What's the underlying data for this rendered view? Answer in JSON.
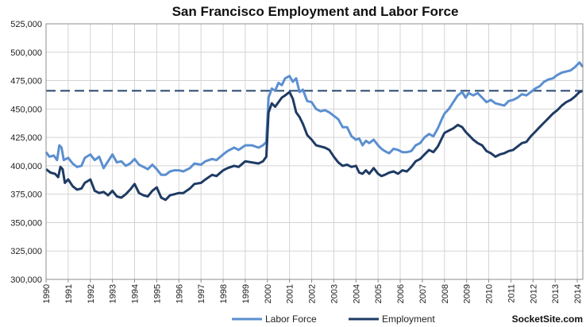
{
  "chart_data": {
    "type": "line",
    "title": "San Francisco Employment and Labor Force",
    "xlabel": "",
    "ylabel": "",
    "xlim": [
      1990,
      2014.25
    ],
    "ylim": [
      300000,
      525000
    ],
    "yticks": [
      300000,
      325000,
      350000,
      375000,
      400000,
      425000,
      450000,
      475000,
      500000,
      525000
    ],
    "ytick_labels": [
      "300,000",
      "325,000",
      "350,000",
      "375,000",
      "400,000",
      "425,000",
      "450,000",
      "475,000",
      "500,000",
      "525,000"
    ],
    "xticks": [
      1990,
      1991,
      1992,
      1993,
      1994,
      1995,
      1996,
      1997,
      1998,
      1999,
      2000,
      2001,
      2002,
      2003,
      2004,
      2005,
      2006,
      2007,
      2008,
      2009,
      2010,
      2011,
      2012,
      2013,
      2014
    ],
    "xtick_labels": [
      "1990",
      "1991",
      "1992",
      "1993",
      "1994",
      "1995",
      "1996",
      "1997",
      "1998",
      "1999",
      "2000",
      "2001",
      "2002",
      "2003",
      "2004",
      "2005",
      "2006",
      "2007",
      "2008",
      "2009",
      "2010",
      "2011",
      "2012",
      "2013",
      "2014"
    ],
    "grid": {
      "horizontal": true,
      "vertical": true
    },
    "legend": "bottom",
    "reference_line": {
      "y": 466000,
      "style": "dashed",
      "color": "#24466f"
    },
    "series": [
      {
        "name": "Labor Force",
        "color": "#5b8fd0",
        "points": [
          [
            1990.0,
            412000
          ],
          [
            1990.15,
            408000
          ],
          [
            1990.35,
            409000
          ],
          [
            1990.5,
            405000
          ],
          [
            1990.6,
            418000
          ],
          [
            1990.7,
            416000
          ],
          [
            1990.8,
            405000
          ],
          [
            1991.0,
            407000
          ],
          [
            1991.2,
            402000
          ],
          [
            1991.4,
            399000
          ],
          [
            1991.6,
            400000
          ],
          [
            1991.75,
            407000
          ],
          [
            1992.0,
            410000
          ],
          [
            1992.2,
            405000
          ],
          [
            1992.4,
            408000
          ],
          [
            1992.6,
            398000
          ],
          [
            1992.8,
            404000
          ],
          [
            1993.0,
            410000
          ],
          [
            1993.2,
            403000
          ],
          [
            1993.4,
            404000
          ],
          [
            1993.6,
            400000
          ],
          [
            1993.8,
            402000
          ],
          [
            1994.0,
            406000
          ],
          [
            1994.2,
            401000
          ],
          [
            1994.4,
            399000
          ],
          [
            1994.6,
            397000
          ],
          [
            1994.8,
            401000
          ],
          [
            1995.0,
            397000
          ],
          [
            1995.2,
            392000
          ],
          [
            1995.4,
            392000
          ],
          [
            1995.6,
            395000
          ],
          [
            1995.8,
            396000
          ],
          [
            1996.0,
            396000
          ],
          [
            1996.2,
            395000
          ],
          [
            1996.5,
            398000
          ],
          [
            1996.7,
            402000
          ],
          [
            1997.0,
            401000
          ],
          [
            1997.2,
            404000
          ],
          [
            1997.5,
            406000
          ],
          [
            1997.7,
            405000
          ],
          [
            1998.0,
            410000
          ],
          [
            1998.2,
            413000
          ],
          [
            1998.5,
            416000
          ],
          [
            1998.7,
            414000
          ],
          [
            1999.0,
            418000
          ],
          [
            1999.3,
            418000
          ],
          [
            1999.6,
            416000
          ],
          [
            1999.8,
            418000
          ],
          [
            1999.95,
            421000
          ],
          [
            2000.05,
            460000
          ],
          [
            2000.2,
            468000
          ],
          [
            2000.35,
            466000
          ],
          [
            2000.5,
            473000
          ],
          [
            2000.65,
            471000
          ],
          [
            2000.8,
            477000
          ],
          [
            2001.0,
            479000
          ],
          [
            2001.15,
            474000
          ],
          [
            2001.3,
            477000
          ],
          [
            2001.45,
            465000
          ],
          [
            2001.6,
            467000
          ],
          [
            2001.8,
            457000
          ],
          [
            2002.0,
            456000
          ],
          [
            2002.2,
            450000
          ],
          [
            2002.4,
            448000
          ],
          [
            2002.6,
            449000
          ],
          [
            2002.8,
            447000
          ],
          [
            2003.0,
            444000
          ],
          [
            2003.2,
            441000
          ],
          [
            2003.4,
            434000
          ],
          [
            2003.6,
            434000
          ],
          [
            2003.8,
            426000
          ],
          [
            2004.0,
            423000
          ],
          [
            2004.15,
            424000
          ],
          [
            2004.3,
            418000
          ],
          [
            2004.45,
            422000
          ],
          [
            2004.6,
            420000
          ],
          [
            2004.8,
            423000
          ],
          [
            2005.0,
            418000
          ],
          [
            2005.15,
            415000
          ],
          [
            2005.3,
            413000
          ],
          [
            2005.5,
            411000
          ],
          [
            2005.7,
            415000
          ],
          [
            2005.9,
            414000
          ],
          [
            2006.1,
            412000
          ],
          [
            2006.3,
            412000
          ],
          [
            2006.5,
            413000
          ],
          [
            2006.7,
            418000
          ],
          [
            2006.9,
            420000
          ],
          [
            2007.1,
            425000
          ],
          [
            2007.3,
            428000
          ],
          [
            2007.5,
            426000
          ],
          [
            2007.7,
            433000
          ],
          [
            2007.9,
            442000
          ],
          [
            2008.0,
            446000
          ],
          [
            2008.2,
            450000
          ],
          [
            2008.4,
            456000
          ],
          [
            2008.6,
            462000
          ],
          [
            2008.8,
            465000
          ],
          [
            2008.95,
            460000
          ],
          [
            2009.1,
            464000
          ],
          [
            2009.3,
            462000
          ],
          [
            2009.5,
            464000
          ],
          [
            2009.7,
            460000
          ],
          [
            2009.9,
            456000
          ],
          [
            2010.1,
            458000
          ],
          [
            2010.3,
            455000
          ],
          [
            2010.5,
            454000
          ],
          [
            2010.7,
            453000
          ],
          [
            2010.9,
            457000
          ],
          [
            2011.1,
            458000
          ],
          [
            2011.3,
            460000
          ],
          [
            2011.5,
            463000
          ],
          [
            2011.7,
            462000
          ],
          [
            2011.9,
            465000
          ],
          [
            2012.1,
            468000
          ],
          [
            2012.3,
            470000
          ],
          [
            2012.5,
            474000
          ],
          [
            2012.7,
            476000
          ],
          [
            2012.9,
            477000
          ],
          [
            2013.1,
            480000
          ],
          [
            2013.3,
            482000
          ],
          [
            2013.5,
            483000
          ],
          [
            2013.7,
            484000
          ],
          [
            2013.9,
            487000
          ],
          [
            2014.0,
            489000
          ],
          [
            2014.1,
            491000
          ],
          [
            2014.25,
            487000
          ]
        ]
      },
      {
        "name": "Employment",
        "color": "#1f3b64",
        "points": [
          [
            1990.0,
            397000
          ],
          [
            1990.2,
            394000
          ],
          [
            1990.4,
            393000
          ],
          [
            1990.55,
            390000
          ],
          [
            1990.65,
            399000
          ],
          [
            1990.75,
            397000
          ],
          [
            1990.85,
            385000
          ],
          [
            1991.0,
            388000
          ],
          [
            1991.2,
            382000
          ],
          [
            1991.4,
            379000
          ],
          [
            1991.6,
            380000
          ],
          [
            1991.75,
            385000
          ],
          [
            1992.0,
            388000
          ],
          [
            1992.2,
            378000
          ],
          [
            1992.4,
            376000
          ],
          [
            1992.6,
            377000
          ],
          [
            1992.8,
            374000
          ],
          [
            1993.0,
            378000
          ],
          [
            1993.2,
            373000
          ],
          [
            1993.4,
            372000
          ],
          [
            1993.6,
            375000
          ],
          [
            1993.8,
            379000
          ],
          [
            1994.0,
            384000
          ],
          [
            1994.2,
            376000
          ],
          [
            1994.4,
            374000
          ],
          [
            1994.6,
            373000
          ],
          [
            1994.8,
            378000
          ],
          [
            1995.0,
            381000
          ],
          [
            1995.2,
            372000
          ],
          [
            1995.4,
            370000
          ],
          [
            1995.6,
            374000
          ],
          [
            1995.8,
            375000
          ],
          [
            1996.0,
            376000
          ],
          [
            1996.2,
            376000
          ],
          [
            1996.5,
            380000
          ],
          [
            1996.7,
            384000
          ],
          [
            1997.0,
            385000
          ],
          [
            1997.2,
            388000
          ],
          [
            1997.5,
            392000
          ],
          [
            1997.7,
            391000
          ],
          [
            1998.0,
            396000
          ],
          [
            1998.2,
            398000
          ],
          [
            1998.5,
            400000
          ],
          [
            1998.7,
            399000
          ],
          [
            1999.0,
            404000
          ],
          [
            1999.3,
            403000
          ],
          [
            1999.6,
            402000
          ],
          [
            1999.8,
            404000
          ],
          [
            1999.95,
            408000
          ],
          [
            2000.05,
            447000
          ],
          [
            2000.2,
            455000
          ],
          [
            2000.35,
            452000
          ],
          [
            2000.5,
            456000
          ],
          [
            2000.65,
            460000
          ],
          [
            2000.8,
            462000
          ],
          [
            2001.0,
            465000
          ],
          [
            2001.15,
            459000
          ],
          [
            2001.3,
            447000
          ],
          [
            2001.45,
            443000
          ],
          [
            2001.6,
            437000
          ],
          [
            2001.8,
            427000
          ],
          [
            2002.0,
            423000
          ],
          [
            2002.2,
            418000
          ],
          [
            2002.4,
            417000
          ],
          [
            2002.6,
            416000
          ],
          [
            2002.8,
            414000
          ],
          [
            2003.0,
            408000
          ],
          [
            2003.2,
            403000
          ],
          [
            2003.4,
            400000
          ],
          [
            2003.6,
            401000
          ],
          [
            2003.8,
            399000
          ],
          [
            2004.0,
            400000
          ],
          [
            2004.15,
            394000
          ],
          [
            2004.3,
            393000
          ],
          [
            2004.45,
            396000
          ],
          [
            2004.6,
            393000
          ],
          [
            2004.8,
            398000
          ],
          [
            2005.0,
            393000
          ],
          [
            2005.15,
            391000
          ],
          [
            2005.3,
            392000
          ],
          [
            2005.5,
            394000
          ],
          [
            2005.7,
            395000
          ],
          [
            2005.9,
            393000
          ],
          [
            2006.1,
            396000
          ],
          [
            2006.3,
            395000
          ],
          [
            2006.5,
            399000
          ],
          [
            2006.7,
            404000
          ],
          [
            2006.9,
            406000
          ],
          [
            2007.1,
            410000
          ],
          [
            2007.3,
            414000
          ],
          [
            2007.5,
            412000
          ],
          [
            2007.7,
            417000
          ],
          [
            2007.9,
            425000
          ],
          [
            2008.0,
            429000
          ],
          [
            2008.2,
            431000
          ],
          [
            2008.4,
            433000
          ],
          [
            2008.6,
            436000
          ],
          [
            2008.8,
            434000
          ],
          [
            2008.95,
            430000
          ],
          [
            2009.1,
            427000
          ],
          [
            2009.3,
            423000
          ],
          [
            2009.5,
            420000
          ],
          [
            2009.7,
            418000
          ],
          [
            2009.9,
            413000
          ],
          [
            2010.1,
            411000
          ],
          [
            2010.3,
            408000
          ],
          [
            2010.5,
            410000
          ],
          [
            2010.7,
            411000
          ],
          [
            2010.9,
            413000
          ],
          [
            2011.1,
            414000
          ],
          [
            2011.3,
            417000
          ],
          [
            2011.5,
            420000
          ],
          [
            2011.7,
            421000
          ],
          [
            2011.9,
            426000
          ],
          [
            2012.1,
            430000
          ],
          [
            2012.3,
            434000
          ],
          [
            2012.5,
            438000
          ],
          [
            2012.7,
            442000
          ],
          [
            2012.9,
            446000
          ],
          [
            2013.1,
            449000
          ],
          [
            2013.3,
            453000
          ],
          [
            2013.5,
            456000
          ],
          [
            2013.7,
            458000
          ],
          [
            2013.9,
            461000
          ],
          [
            2014.0,
            463000
          ],
          [
            2014.1,
            465000
          ],
          [
            2014.25,
            466000
          ]
        ]
      }
    ]
  },
  "footer": {
    "brand": "SocketSite.com"
  }
}
